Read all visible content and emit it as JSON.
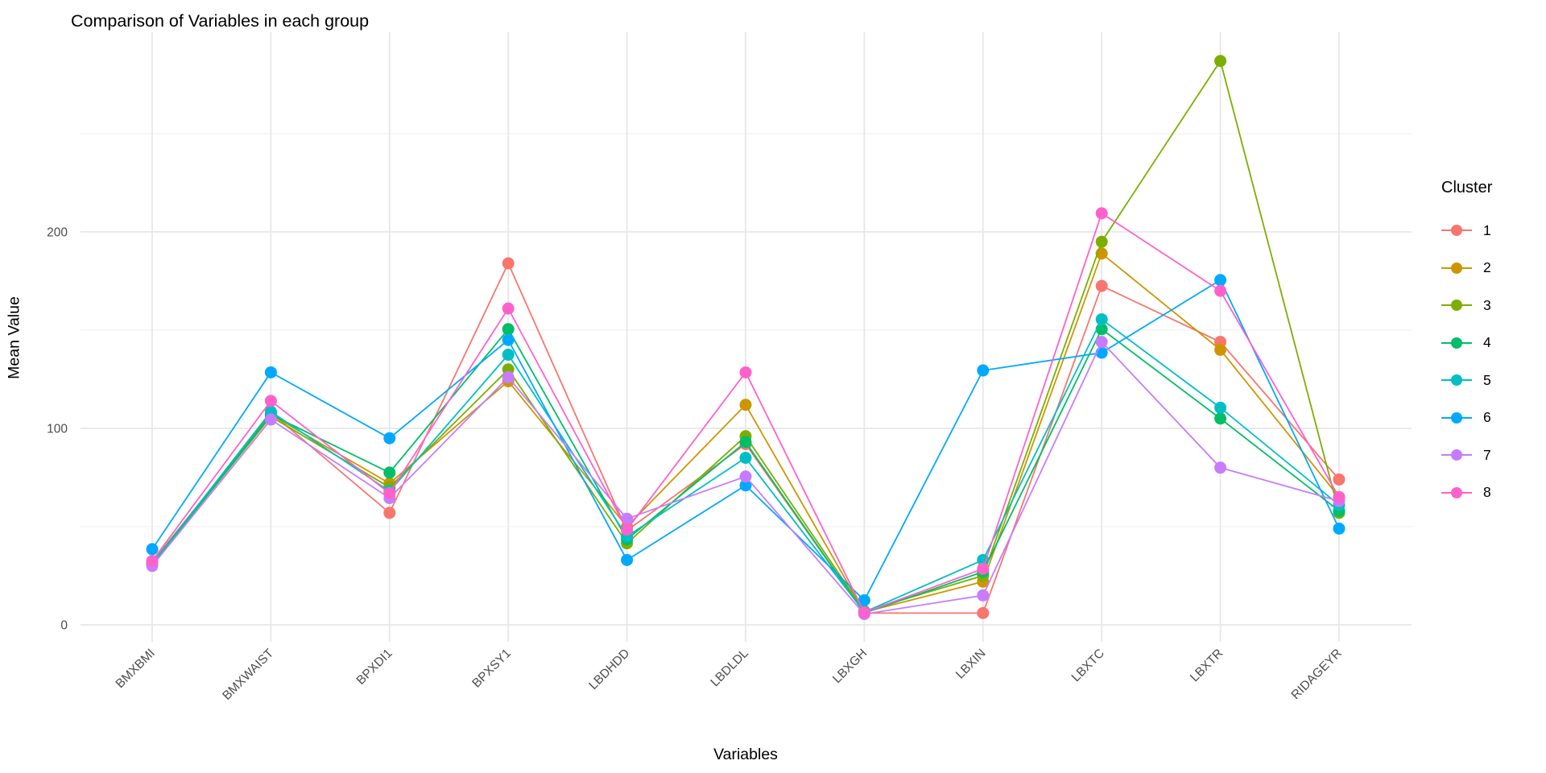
{
  "chart_data": {
    "type": "line",
    "title": "Comparison of Variables in each group",
    "xlabel": "Variables",
    "ylabel": "Mean Value",
    "legend_title": "Cluster",
    "legend_position": "right",
    "grid": true,
    "categories": [
      "BMXBMI",
      "BMXWAIST",
      "BPXDI1",
      "BPXSY1",
      "LBDHDD",
      "LBDLDL",
      "LBXGH",
      "LBXIN",
      "LBXTC",
      "LBXTR",
      "RIDAGEYR"
    ],
    "y_axis": {
      "ticks": [
        0,
        100,
        200
      ],
      "minor_gridlines": [
        50,
        150,
        250
      ],
      "range": [
        -9,
        301
      ]
    },
    "series": [
      {
        "name": "1",
        "color": "#F8766D",
        "values": [
          31,
          108,
          57,
          184,
          48,
          92,
          6,
          6,
          172.5,
          144,
          74
        ]
      },
      {
        "name": "2",
        "color": "#CD9600",
        "values": [
          32,
          107,
          72,
          124,
          50,
          112,
          6.5,
          22,
          189,
          140,
          65
        ]
      },
      {
        "name": "3",
        "color": "#7CAE00",
        "values": [
          31,
          106,
          70,
          130,
          41.5,
          96,
          7,
          25,
          195,
          287,
          57
        ]
      },
      {
        "name": "4",
        "color": "#00BE67",
        "values": [
          30.5,
          107,
          77.5,
          150.5,
          43.5,
          93,
          6,
          27,
          150.5,
          105,
          58
        ]
      },
      {
        "name": "5",
        "color": "#00BFC4",
        "values": [
          31,
          108.5,
          68,
          137.5,
          45,
          85,
          6.5,
          33,
          155.5,
          110.5,
          61
        ]
      },
      {
        "name": "6",
        "color": "#00A9FF",
        "values": [
          38.5,
          128.5,
          95,
          145,
          33,
          71,
          12.5,
          129.5,
          138.5,
          175.5,
          49
        ]
      },
      {
        "name": "7",
        "color": "#C77CFF",
        "values": [
          30,
          104.5,
          64.5,
          126,
          54,
          75.5,
          5.5,
          15,
          144,
          80,
          63
        ]
      },
      {
        "name": "8",
        "color": "#FF61CC",
        "values": [
          32.5,
          114,
          67,
          161,
          48.5,
          128.5,
          6.3,
          28.5,
          209.5,
          170,
          65
        ]
      }
    ]
  }
}
